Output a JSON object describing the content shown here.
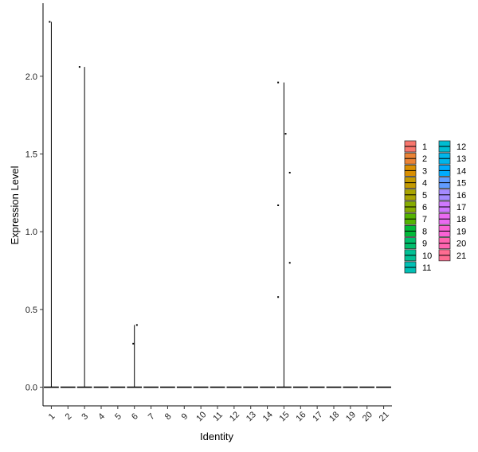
{
  "chart_data": {
    "type": "violin",
    "xlabel": "Identity",
    "ylabel": "Expression Level",
    "ylim": [
      -0.12,
      2.47
    ],
    "yticks": [
      0.0,
      0.5,
      1.0,
      1.5,
      2.0
    ],
    "ytick_labels": [
      "0.0",
      "0.5",
      "1.0",
      "1.5",
      "2.0"
    ],
    "categories": [
      "1",
      "2",
      "3",
      "4",
      "5",
      "6",
      "7",
      "8",
      "9",
      "10",
      "11",
      "12",
      "13",
      "14",
      "15",
      "16",
      "17",
      "18",
      "19",
      "20",
      "21"
    ],
    "colors": [
      "#F8766D",
      "#EB8335",
      "#DA8F00",
      "#C49A00",
      "#A9A400",
      "#86AC00",
      "#53B400",
      "#00BA38",
      "#00BE6C",
      "#00C094",
      "#00C0B5",
      "#00BDD2",
      "#00B6EB",
      "#00ABFD",
      "#619CFF",
      "#A58AFF",
      "#CF78FF",
      "#EA6AF1",
      "#FA62D5",
      "#FF64B0",
      "#FF6C91"
    ],
    "violins": [
      {
        "category": "1",
        "max": 2.35
      },
      {
        "category": "3",
        "max": 2.06
      },
      {
        "category": "6",
        "max": 0.4
      },
      {
        "category": "15",
        "max": 1.96
      }
    ],
    "points": [
      {
        "category": "1",
        "offset": -0.1,
        "y": 2.35
      },
      {
        "category": "3",
        "offset": -0.3,
        "y": 2.06
      },
      {
        "category": "6",
        "offset": -0.07,
        "y": 0.28
      },
      {
        "category": "6",
        "offset": 0.15,
        "y": 0.4
      },
      {
        "category": "15",
        "offset": -0.35,
        "y": 1.96
      },
      {
        "category": "15",
        "offset": 0.1,
        "y": 1.63
      },
      {
        "category": "15",
        "offset": 0.35,
        "y": 1.38
      },
      {
        "category": "15",
        "offset": -0.35,
        "y": 1.17
      },
      {
        "category": "15",
        "offset": 0.35,
        "y": 0.8
      },
      {
        "category": "15",
        "offset": -0.35,
        "y": 0.58
      }
    ],
    "legend": {
      "position": "right",
      "columns": [
        [
          "1",
          "2",
          "3",
          "4",
          "5",
          "6",
          "7",
          "8",
          "9",
          "10",
          "11"
        ],
        [
          "12",
          "13",
          "14",
          "15",
          "16",
          "17",
          "18",
          "19",
          "20",
          "21"
        ]
      ]
    }
  }
}
